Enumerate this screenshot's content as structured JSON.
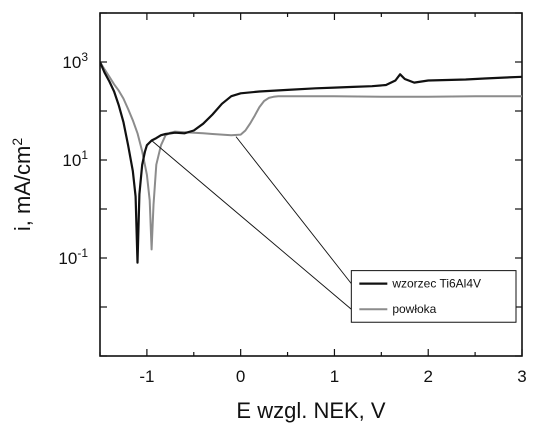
{
  "chart_data": {
    "type": "line",
    "title": "",
    "xlabel": "E wzgl. NEK, V",
    "ylabel_main": "i, mA/cm",
    "ylabel_sup": "2",
    "xlim": [
      -1.5,
      3
    ],
    "ylim_log10": [
      -3,
      4
    ],
    "y_scale": "log",
    "grid": false,
    "legend_position": "bottom-right",
    "x_ticks": [
      {
        "value": -1,
        "label": "-1"
      },
      {
        "value": 0,
        "label": "0"
      },
      {
        "value": 1,
        "label": "1"
      },
      {
        "value": 2,
        "label": "2"
      },
      {
        "value": 3,
        "label": "3"
      }
    ],
    "y_ticks": [
      {
        "exp": -1,
        "base": "10",
        "sup": "-1"
      },
      {
        "exp": 1,
        "base": "10",
        "sup": "1"
      },
      {
        "exp": 3,
        "base": "10",
        "sup": "3"
      }
    ],
    "series": [
      {
        "name": "wzorzec Ti6Al4V",
        "color": "#111111",
        "points": [
          [
            -1.5,
            1000
          ],
          [
            -1.45,
            600
          ],
          [
            -1.4,
            400
          ],
          [
            -1.35,
            250
          ],
          [
            -1.3,
            130
          ],
          [
            -1.25,
            60
          ],
          [
            -1.2,
            20
          ],
          [
            -1.15,
            6
          ],
          [
            -1.12,
            1.8
          ],
          [
            -1.1,
            0.08
          ],
          [
            -1.08,
            2
          ],
          [
            -1.05,
            8
          ],
          [
            -1.02,
            15
          ],
          [
            -1.0,
            20
          ],
          [
            -0.95,
            25
          ],
          [
            -0.9,
            28
          ],
          [
            -0.85,
            32
          ],
          [
            -0.8,
            34
          ],
          [
            -0.7,
            36
          ],
          [
            -0.6,
            35
          ],
          [
            -0.5,
            40
          ],
          [
            -0.4,
            55
          ],
          [
            -0.3,
            85
          ],
          [
            -0.2,
            140
          ],
          [
            -0.1,
            200
          ],
          [
            0,
            230
          ],
          [
            0.2,
            250
          ],
          [
            0.5,
            270
          ],
          [
            0.8,
            290
          ],
          [
            1.0,
            300
          ],
          [
            1.2,
            310
          ],
          [
            1.4,
            320
          ],
          [
            1.55,
            340
          ],
          [
            1.65,
            420
          ],
          [
            1.7,
            560
          ],
          [
            1.75,
            450
          ],
          [
            1.85,
            380
          ],
          [
            2.0,
            420
          ],
          [
            2.2,
            430
          ],
          [
            2.4,
            440
          ],
          [
            2.6,
            460
          ],
          [
            2.8,
            480
          ],
          [
            3.0,
            500
          ]
        ]
      },
      {
        "name": "powłoka",
        "color": "#8c8c8c",
        "points": [
          [
            -1.5,
            1000
          ],
          [
            -1.45,
            700
          ],
          [
            -1.4,
            500
          ],
          [
            -1.35,
            350
          ],
          [
            -1.3,
            260
          ],
          [
            -1.25,
            180
          ],
          [
            -1.2,
            110
          ],
          [
            -1.15,
            65
          ],
          [
            -1.1,
            35
          ],
          [
            -1.05,
            15
          ],
          [
            -1.0,
            5
          ],
          [
            -0.97,
            1.5
          ],
          [
            -0.95,
            0.15
          ],
          [
            -0.93,
            1.2
          ],
          [
            -0.9,
            8
          ],
          [
            -0.85,
            20
          ],
          [
            -0.8,
            32
          ],
          [
            -0.75,
            36
          ],
          [
            -0.7,
            38
          ],
          [
            -0.6,
            37
          ],
          [
            -0.5,
            36
          ],
          [
            -0.4,
            35
          ],
          [
            -0.3,
            34
          ],
          [
            -0.2,
            33
          ],
          [
            -0.1,
            32
          ],
          [
            0,
            33
          ],
          [
            0.05,
            40
          ],
          [
            0.1,
            55
          ],
          [
            0.15,
            80
          ],
          [
            0.2,
            120
          ],
          [
            0.25,
            160
          ],
          [
            0.3,
            185
          ],
          [
            0.35,
            195
          ],
          [
            0.4,
            200
          ],
          [
            0.6,
            200
          ],
          [
            1.0,
            200
          ],
          [
            1.5,
            195
          ],
          [
            2.0,
            195
          ],
          [
            2.5,
            200
          ],
          [
            3.0,
            200
          ]
        ]
      }
    ],
    "annotation_lines": [
      {
        "from": [
          -0.05,
          30
        ],
        "to": [
          1.18,
          0.03
        ]
      },
      {
        "from": [
          -0.95,
          25
        ],
        "to": [
          1.18,
          0.009
        ]
      }
    ]
  }
}
